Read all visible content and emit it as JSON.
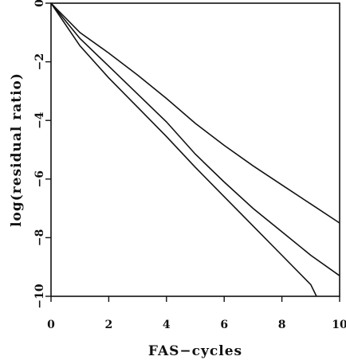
{
  "chart_data": {
    "type": "line",
    "title": "",
    "xlabel": "FAS−cycles",
    "ylabel": "log(residual ratio)",
    "xlim": [
      0,
      10
    ],
    "ylim": [
      -10,
      0
    ],
    "xticks": [
      0,
      2,
      4,
      6,
      8,
      10
    ],
    "yticks": [
      0,
      -2,
      -4,
      -6,
      -8,
      -10
    ],
    "xtick_labels": [
      "0",
      "2",
      "4",
      "6",
      "8",
      "10"
    ],
    "ytick_labels": [
      "0",
      "−2",
      "−4",
      "−6",
      "−8",
      "−10"
    ],
    "grid": false,
    "line_color": "#111111",
    "series": [
      {
        "x": [
          0,
          1,
          2,
          3,
          4,
          5,
          6,
          7,
          8,
          9,
          10
        ],
        "y": [
          0,
          -1.0,
          -1.7,
          -2.45,
          -3.25,
          -4.1,
          -4.85,
          -5.55,
          -6.2,
          -6.85,
          -7.5
        ]
      },
      {
        "x": [
          0,
          1,
          2,
          3,
          4,
          5,
          6,
          7,
          8,
          9,
          10
        ],
        "y": [
          0,
          -1.2,
          -2.15,
          -3.1,
          -4.05,
          -5.15,
          -6.1,
          -7.0,
          -7.8,
          -8.6,
          -9.3
        ]
      },
      {
        "x": [
          0,
          1,
          2,
          3,
          4,
          5,
          6,
          7,
          8,
          9,
          9.2
        ],
        "y": [
          0,
          -1.45,
          -2.55,
          -3.55,
          -4.55,
          -5.6,
          -6.6,
          -7.6,
          -8.6,
          -9.6,
          -10
        ]
      }
    ]
  }
}
